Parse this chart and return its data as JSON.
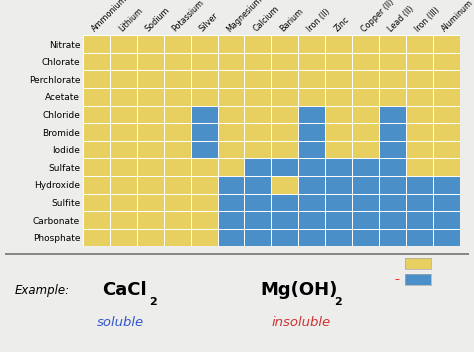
{
  "cations": [
    "Ammonium",
    "Lithium",
    "Sodium",
    "Potassium",
    "Silver",
    "Magnesium",
    "Calcium",
    "Barium",
    "Iron (II)",
    "Zinc",
    "Copper (II)",
    "Lead (II)",
    "Iron (III)",
    "Aluminum"
  ],
  "anions": [
    "Nitrate",
    "Chlorate",
    "Perchlorate",
    "Acetate",
    "Chloride",
    "Bromide",
    "Iodide",
    "Sulfate",
    "Hydroxide",
    "Sulfite",
    "Carbonate",
    "Phosphate"
  ],
  "grid": [
    [
      1,
      1,
      1,
      1,
      1,
      1,
      1,
      1,
      1,
      1,
      1,
      1,
      1,
      1
    ],
    [
      1,
      1,
      1,
      1,
      1,
      1,
      1,
      1,
      1,
      1,
      1,
      1,
      1,
      1
    ],
    [
      1,
      1,
      1,
      1,
      1,
      1,
      1,
      1,
      1,
      1,
      1,
      1,
      1,
      1
    ],
    [
      1,
      1,
      1,
      1,
      1,
      1,
      1,
      1,
      1,
      1,
      1,
      1,
      1,
      1
    ],
    [
      1,
      1,
      1,
      1,
      0,
      1,
      1,
      1,
      0,
      1,
      1,
      0,
      1,
      1
    ],
    [
      1,
      1,
      1,
      1,
      0,
      1,
      1,
      1,
      0,
      1,
      1,
      0,
      1,
      1
    ],
    [
      1,
      1,
      1,
      1,
      0,
      1,
      1,
      1,
      0,
      1,
      1,
      0,
      1,
      1
    ],
    [
      1,
      1,
      1,
      1,
      1,
      1,
      0,
      0,
      0,
      0,
      0,
      0,
      1,
      1
    ],
    [
      1,
      1,
      1,
      1,
      1,
      0,
      0,
      1,
      0,
      0,
      0,
      0,
      0,
      0
    ],
    [
      1,
      1,
      1,
      1,
      1,
      0,
      0,
      0,
      0,
      0,
      0,
      0,
      0,
      0
    ],
    [
      1,
      1,
      1,
      1,
      1,
      0,
      0,
      0,
      0,
      0,
      0,
      0,
      0,
      0
    ],
    [
      1,
      1,
      1,
      1,
      1,
      0,
      0,
      0,
      0,
      0,
      0,
      0,
      0,
      0
    ]
  ],
  "soluble_color": "#E8D060",
  "insoluble_color": "#4B8FC8",
  "grid_line_color": "#FFFFFF",
  "background_color": "#EDEDEB",
  "example_label": "Example:",
  "example_soluble_word": "soluble",
  "example_insoluble_word": "insoluble",
  "soluble_word_color": "#3355CC",
  "insoluble_word_color": "#CC3333",
  "anion_fontsize": 6.5,
  "cation_fontsize": 5.8
}
